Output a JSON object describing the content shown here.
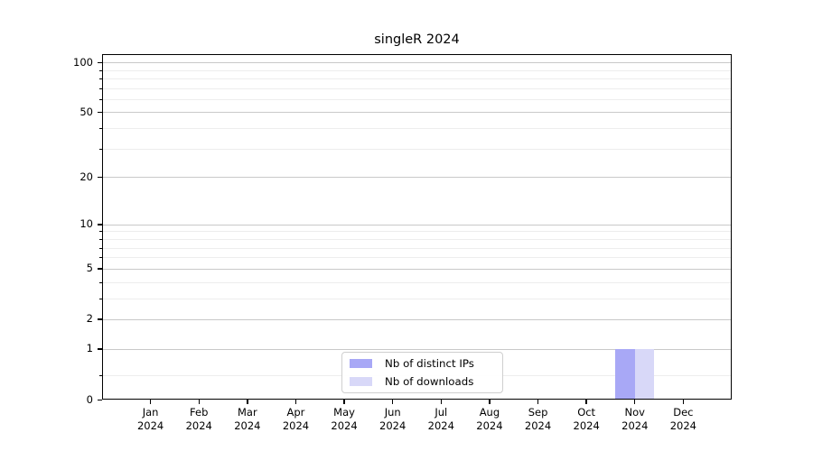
{
  "chart_data": {
    "type": "bar",
    "title": "singleR 2024",
    "categories": [
      "Jan",
      "Feb",
      "Mar",
      "Apr",
      "May",
      "Jun",
      "Jul",
      "Aug",
      "Sep",
      "Oct",
      "Nov",
      "Dec"
    ],
    "year_label": "2024",
    "series": [
      {
        "name": "Nb of distinct IPs",
        "color": "#a8a8f6",
        "values": [
          0,
          0,
          0,
          0,
          0,
          0,
          0,
          0,
          0,
          0,
          1,
          0
        ]
      },
      {
        "name": "Nb of downloads",
        "color": "#d8d8f8",
        "values": [
          0,
          0,
          0,
          0,
          0,
          0,
          0,
          0,
          0,
          0,
          1,
          0
        ]
      }
    ],
    "yticks_major": [
      0,
      1,
      2,
      5,
      10,
      20,
      50,
      100
    ],
    "yticks_minor": [
      0.4,
      3,
      4,
      6,
      7,
      8,
      9,
      30,
      40,
      60,
      70,
      80,
      90
    ],
    "ylim": [
      0,
      112
    ],
    "yscale": "log1p",
    "xlabel": "",
    "ylabel": "",
    "grid": "horizontal-major-and-minor",
    "legend_position": "bottom-center"
  },
  "colors": {
    "major_grid": "#c9c9c9",
    "minor_grid": "#ededed",
    "spine": "#000000",
    "text": "#000000",
    "background": "#ffffff"
  }
}
